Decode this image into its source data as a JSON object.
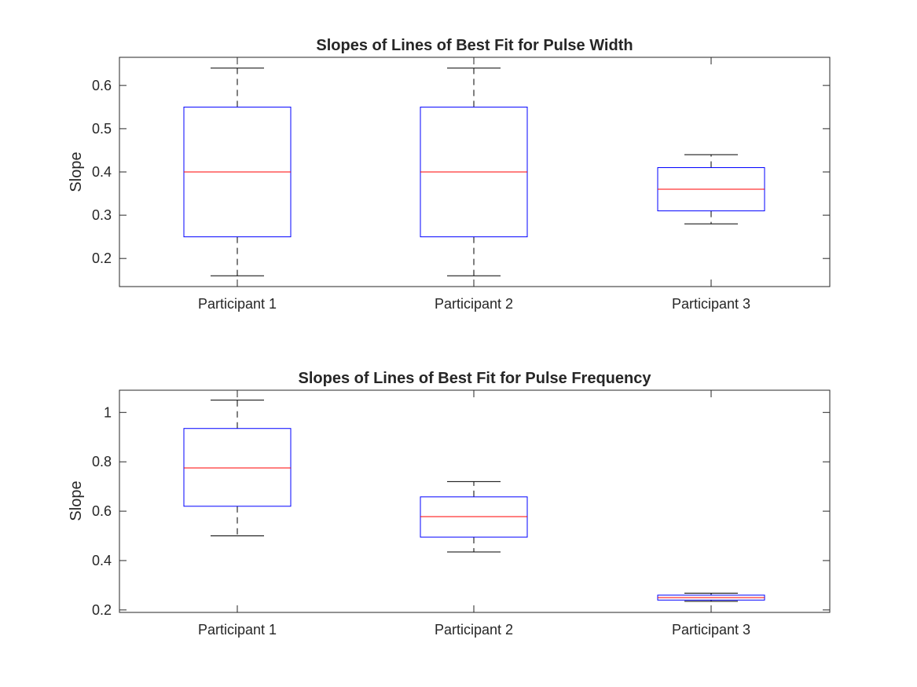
{
  "colors": {
    "box": "#0000ff",
    "median": "#ff0000",
    "whisker": "#000000",
    "axis": "#262626"
  },
  "chart_data": [
    {
      "type": "box",
      "title": "Slopes of Lines of Best Fit for Pulse Width",
      "xlabel": "",
      "ylabel": "Slope",
      "ylim": [
        0.135,
        0.665
      ],
      "yticks": [
        0.2,
        0.3,
        0.4,
        0.5,
        0.6
      ],
      "ytick_labels": [
        "0.2",
        "0.3",
        "0.4",
        "0.5",
        "0.6"
      ],
      "categories": [
        "Participant 1",
        "Participant 2",
        "Participant 3"
      ],
      "boxes": [
        {
          "whisker_low": 0.16,
          "q1": 0.25,
          "median": 0.4,
          "q3": 0.55,
          "whisker_high": 0.64
        },
        {
          "whisker_low": 0.16,
          "q1": 0.25,
          "median": 0.4,
          "q3": 0.55,
          "whisker_high": 0.64
        },
        {
          "whisker_low": 0.28,
          "q1": 0.31,
          "median": 0.36,
          "q3": 0.41,
          "whisker_high": 0.44
        }
      ],
      "grid": false,
      "legend": "none"
    },
    {
      "type": "box",
      "title": "Slopes of Lines of Best Fit for Pulse Frequency",
      "xlabel": "",
      "ylabel": "Slope",
      "ylim": [
        0.19,
        1.09
      ],
      "yticks": [
        0.2,
        0.4,
        0.6,
        0.8,
        1.0
      ],
      "ytick_labels": [
        "0.2",
        "0.4",
        "0.6",
        "0.8",
        "1"
      ],
      "categories": [
        "Participant 1",
        "Participant 2",
        "Participant 3"
      ],
      "boxes": [
        {
          "whisker_low": 0.5,
          "q1": 0.62,
          "median": 0.775,
          "q3": 0.935,
          "whisker_high": 1.05
        },
        {
          "whisker_low": 0.435,
          "q1": 0.495,
          "median": 0.578,
          "q3": 0.658,
          "whisker_high": 0.72
        },
        {
          "whisker_low": 0.235,
          "q1": 0.24,
          "median": 0.25,
          "q3": 0.26,
          "whisker_high": 0.268
        }
      ],
      "grid": false,
      "legend": "none"
    }
  ]
}
